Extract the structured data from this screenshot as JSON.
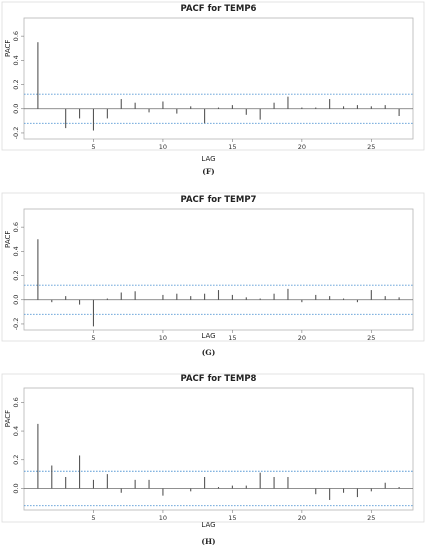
{
  "chart_data": [
    {
      "type": "bar",
      "title": "PACF for TEMP6",
      "xlabel": "LAG",
      "ylabel": "PACF",
      "caption": "(F)",
      "xlim": [
        0,
        28
      ],
      "ylim": [
        -0.25,
        0.75
      ],
      "x_ticks": [
        {
          "value": 5,
          "label": "5"
        },
        {
          "value": 10,
          "label": "10"
        },
        {
          "value": 15,
          "label": "15"
        },
        {
          "value": 20,
          "label": "20"
        },
        {
          "value": 25,
          "label": "25"
        }
      ],
      "y_ticks": [
        {
          "value": 0.6,
          "label": "0.6"
        },
        {
          "value": 0.4,
          "label": "0.4"
        },
        {
          "value": 0.2,
          "label": "0.2"
        },
        {
          "value": 0.0,
          "label": "0.0"
        },
        {
          "value": -0.2,
          "label": "-0.2"
        }
      ],
      "confidence_band": [
        -0.12,
        0.12
      ],
      "x": [
        1,
        2,
        3,
        4,
        5,
        6,
        7,
        8,
        9,
        10,
        11,
        12,
        13,
        14,
        15,
        16,
        17,
        18,
        19,
        20,
        21,
        22,
        23,
        24,
        25,
        26,
        27
      ],
      "values": [
        0.55,
        0.0,
        -0.16,
        -0.08,
        -0.18,
        -0.08,
        0.08,
        0.05,
        -0.03,
        0.06,
        -0.04,
        0.02,
        -0.12,
        0.01,
        0.03,
        -0.05,
        -0.09,
        0.05,
        0.1,
        0.01,
        0.01,
        0.08,
        0.02,
        0.03,
        0.02,
        0.03,
        -0.06
      ],
      "grid": false
    },
    {
      "type": "bar",
      "title": "PACF for TEMP7",
      "xlabel": "LAG",
      "ylabel": "PACF",
      "caption": "(G)",
      "xlim": [
        0,
        28
      ],
      "ylim": [
        -0.25,
        0.75
      ],
      "x_ticks": [
        {
          "value": 5,
          "label": "5"
        },
        {
          "value": 10,
          "label": "10"
        },
        {
          "value": 15,
          "label": "15"
        },
        {
          "value": 20,
          "label": "20"
        },
        {
          "value": 25,
          "label": "25"
        }
      ],
      "y_ticks": [
        {
          "value": 0.6,
          "label": "0.6"
        },
        {
          "value": 0.4,
          "label": "0.4"
        },
        {
          "value": 0.2,
          "label": "0.2"
        },
        {
          "value": 0.0,
          "label": "0.0"
        },
        {
          "value": -0.2,
          "label": "-0.2"
        }
      ],
      "confidence_band": [
        -0.12,
        0.12
      ],
      "x": [
        1,
        2,
        3,
        4,
        5,
        6,
        7,
        8,
        9,
        10,
        11,
        12,
        13,
        14,
        15,
        16,
        17,
        18,
        19,
        20,
        21,
        22,
        23,
        24,
        25,
        26,
        27
      ],
      "values": [
        0.5,
        -0.02,
        0.03,
        -0.04,
        -0.22,
        0.01,
        0.06,
        0.07,
        0.0,
        0.04,
        0.05,
        0.03,
        0.05,
        0.08,
        0.04,
        0.02,
        0.01,
        0.05,
        0.09,
        -0.02,
        0.04,
        0.03,
        0.01,
        -0.02,
        0.08,
        0.03,
        0.02
      ],
      "grid": false
    },
    {
      "type": "bar",
      "title": "PACF for TEMP8",
      "xlabel": "LAG",
      "ylabel": "PACF",
      "caption": "(H)",
      "xlim": [
        0,
        28
      ],
      "ylim": [
        -0.15,
        0.7
      ],
      "x_ticks": [
        {
          "value": 5,
          "label": "5"
        },
        {
          "value": 10,
          "label": "10"
        },
        {
          "value": 15,
          "label": "15"
        },
        {
          "value": 20,
          "label": "20"
        },
        {
          "value": 25,
          "label": "25"
        }
      ],
      "y_ticks": [
        {
          "value": 0.6,
          "label": "0.6"
        },
        {
          "value": 0.4,
          "label": "0.4"
        },
        {
          "value": 0.2,
          "label": "0.2"
        },
        {
          "value": 0.0,
          "label": "0.0"
        }
      ],
      "confidence_band": [
        -0.12,
        0.12
      ],
      "x": [
        1,
        2,
        3,
        4,
        5,
        6,
        7,
        8,
        9,
        10,
        11,
        12,
        13,
        14,
        15,
        16,
        17,
        18,
        19,
        20,
        21,
        22,
        23,
        24,
        25,
        26,
        27
      ],
      "values": [
        0.45,
        0.16,
        0.08,
        0.23,
        0.06,
        0.1,
        -0.03,
        0.06,
        0.06,
        -0.05,
        0.0,
        -0.02,
        0.08,
        0.01,
        0.02,
        0.02,
        0.11,
        0.08,
        0.08,
        0.0,
        -0.04,
        -0.08,
        -0.03,
        -0.06,
        -0.02,
        0.04,
        0.01
      ],
      "grid": false
    }
  ],
  "colors": {
    "bar": "#555555",
    "confidence_band": "#5b9bd5",
    "frame": "#b5b5b5",
    "zero_line": "#6b6b6b"
  }
}
